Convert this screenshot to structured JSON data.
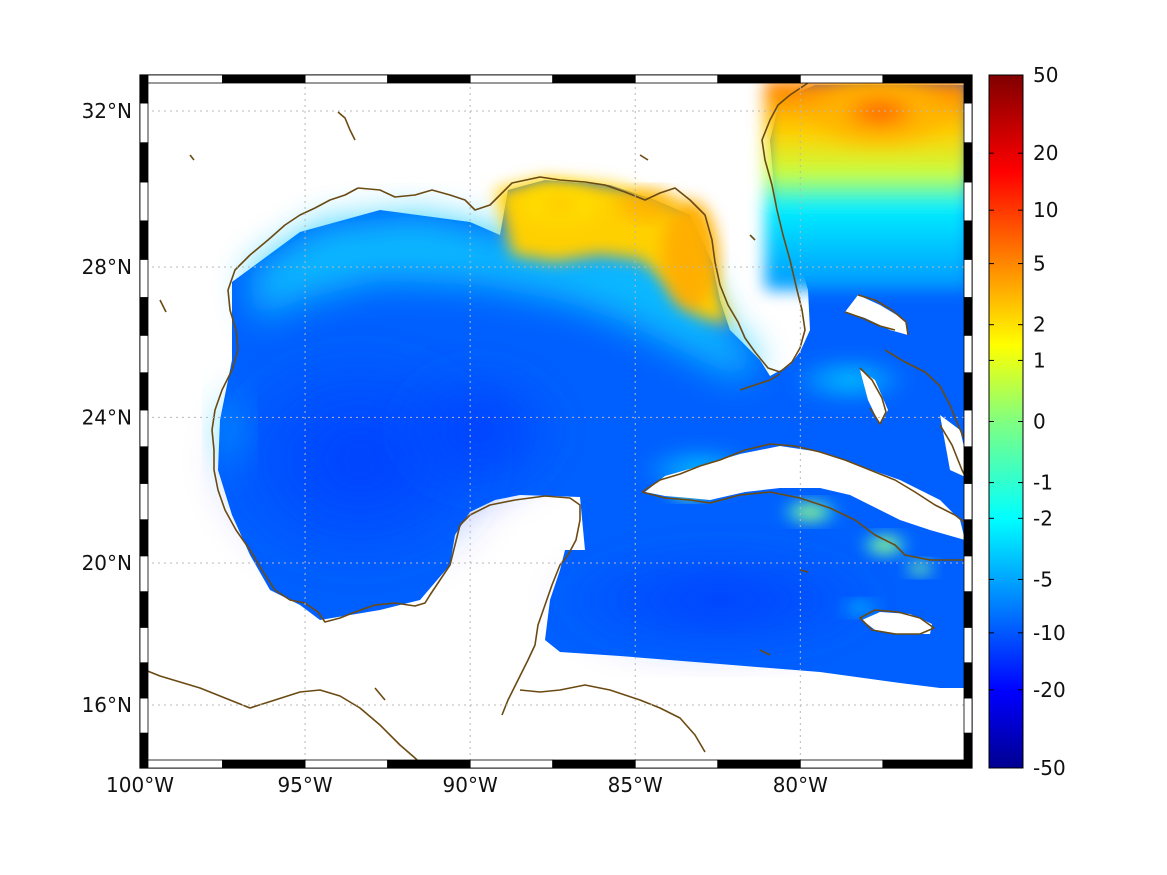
{
  "map": {
    "projection": "mercator",
    "lon_range": [
      -100,
      -74.8
    ],
    "lat_range": [
      14.2,
      32.9
    ],
    "longitude_ticks": [
      {
        "value": -100,
        "label": "100°W"
      },
      {
        "value": -95,
        "label": "95°W"
      },
      {
        "value": -90,
        "label": "90°W"
      },
      {
        "value": -85,
        "label": "85°W"
      },
      {
        "value": -80,
        "label": "80°W"
      }
    ],
    "latitude_ticks": [
      {
        "value": 16,
        "label": "16°N"
      },
      {
        "value": 20,
        "label": "20°N"
      },
      {
        "value": 24,
        "label": "24°N"
      },
      {
        "value": 28,
        "label": "28°N"
      },
      {
        "value": 32,
        "label": "32°N"
      }
    ],
    "gridlines": "dotted",
    "frame": "black-and-white-checkered",
    "coastline_color": "#6b4a12",
    "land_color": "#ffffff"
  },
  "colorbar": {
    "placement": "right",
    "colormap": "jet",
    "scale": "symmetric-log",
    "range": [
      -50,
      50
    ],
    "tick_labels": [
      "50",
      "20",
      "10",
      "5",
      "2",
      "1",
      "0",
      "-1",
      "-2",
      "-5",
      "-10",
      "-20",
      "-50"
    ]
  },
  "field": {
    "dominant_values": "-10 to -5 over the open Gulf and Caribbean",
    "high_regions": "northern Gulf shelf and Florida west coast about 2 to 5; Atlantic off Georgia/South Carolina about 5 to 20",
    "near_zero_regions": "south coast of Cuba and near Jamaica"
  }
}
